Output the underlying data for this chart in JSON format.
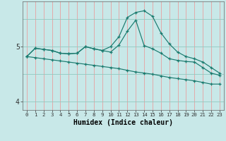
{
  "xlabel": "Humidex (Indice chaleur)",
  "bg_color": "#c8e8e8",
  "line_color": "#1a7a6e",
  "grid_color_v": "#e8a0a0",
  "grid_color_h": "#90c8c0",
  "x": [
    0,
    1,
    2,
    3,
    4,
    5,
    6,
    7,
    8,
    9,
    10,
    11,
    12,
    13,
    14,
    15,
    16,
    17,
    18,
    19,
    20,
    21,
    22,
    23
  ],
  "line_top": [
    4.82,
    4.97,
    4.95,
    4.93,
    4.88,
    4.87,
    4.88,
    5.0,
    4.96,
    4.93,
    5.0,
    5.18,
    5.53,
    5.62,
    5.65,
    5.55,
    5.25,
    5.05,
    4.9,
    4.82,
    4.78,
    4.72,
    4.62,
    4.52
  ],
  "line_mid": [
    4.82,
    4.97,
    4.95,
    4.93,
    4.88,
    4.87,
    4.88,
    5.0,
    4.96,
    4.93,
    4.9,
    5.03,
    5.28,
    5.48,
    5.02,
    4.96,
    4.88,
    4.78,
    4.75,
    4.73,
    4.72,
    4.62,
    4.52,
    4.48
  ],
  "line_low": [
    4.82,
    4.8,
    4.78,
    4.76,
    4.74,
    4.72,
    4.7,
    4.68,
    4.66,
    4.64,
    4.62,
    4.6,
    4.57,
    4.54,
    4.52,
    4.5,
    4.47,
    4.44,
    4.42,
    4.4,
    4.38,
    4.35,
    4.32,
    4.32
  ],
  "yticks": [
    4,
    5
  ],
  "ylim": [
    3.85,
    5.82
  ],
  "xlim": [
    -0.5,
    23.5
  ]
}
